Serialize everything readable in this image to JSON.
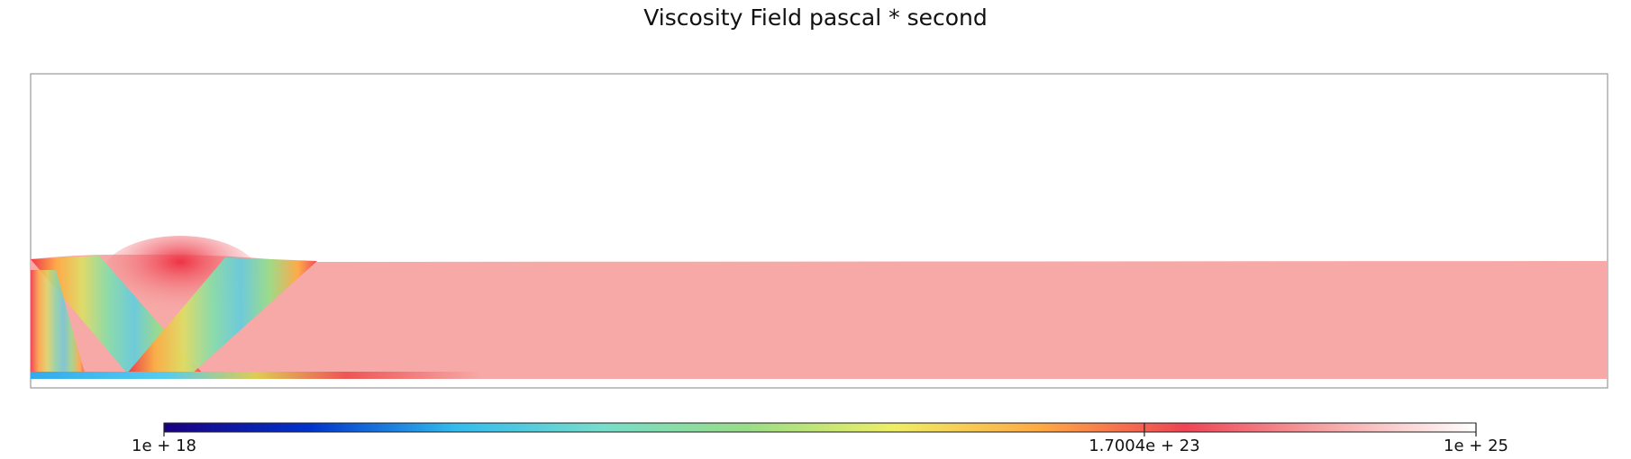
{
  "chart_data": {
    "type": "heatmap",
    "title": "Viscosity Field pascal * second",
    "colorbar": {
      "scale": "log",
      "range": [
        1e+18,
        1e+25
      ],
      "tick_values": [
        1e+18,
        1.7004e+23,
        1e+25
      ],
      "tick_labels": [
        "1e + 18",
        "1.7004e + 23",
        "1e + 25"
      ],
      "colormap": [
        "#1a0080",
        "#0033cc",
        "#33bbee",
        "#77ddcc",
        "#99dd88",
        "#eeee66",
        "#ffaa44",
        "#ee4455",
        "#f6a8a8",
        "#ffffff"
      ]
    },
    "field": {
      "background_value": 1e+23,
      "background_color": "#f6a9a7",
      "low_viscosity_bands": "two crossing diagonal shear bands forming a V near the left boundary"
    },
    "grid": false
  }
}
